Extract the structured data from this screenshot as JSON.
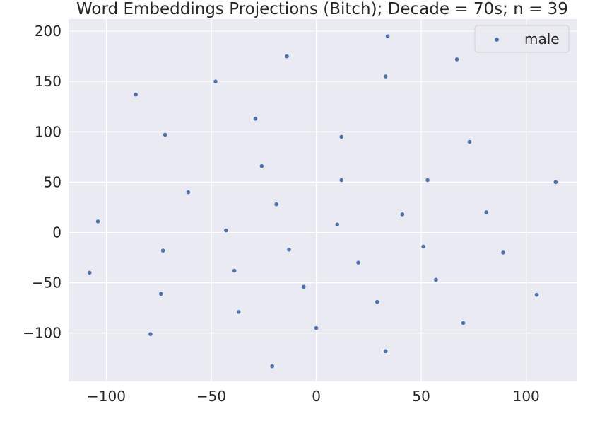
{
  "chart_data": {
    "type": "scatter",
    "title": "Word Embeddings Projections (Bitch); Decade = 70s; n = 39",
    "xlabel": "",
    "ylabel": "",
    "xlim": [
      -118,
      124
    ],
    "ylim": [
      -148,
      212
    ],
    "xticks": [
      -100,
      -50,
      0,
      50,
      100
    ],
    "yticks": [
      -100,
      -50,
      0,
      50,
      100,
      150,
      200
    ],
    "grid": true,
    "legend_position": "top-right",
    "background": "#eaeaf2",
    "series": [
      {
        "name": "male",
        "color": "#4c72b0",
        "points": [
          [
            34,
            195
          ],
          [
            -14,
            175
          ],
          [
            67,
            172
          ],
          [
            33,
            155
          ],
          [
            -48,
            150
          ],
          [
            -86,
            137
          ],
          [
            -29,
            113
          ],
          [
            -72,
            97
          ],
          [
            12,
            95
          ],
          [
            73,
            90
          ],
          [
            -26,
            66
          ],
          [
            12,
            52
          ],
          [
            53,
            52
          ],
          [
            114,
            50
          ],
          [
            -61,
            40
          ],
          [
            -19,
            28
          ],
          [
            41,
            18
          ],
          [
            81,
            20
          ],
          [
            -104,
            11
          ],
          [
            10,
            8
          ],
          [
            -43,
            2
          ],
          [
            -73,
            -18
          ],
          [
            -13,
            -17
          ],
          [
            51,
            -14
          ],
          [
            89,
            -20
          ],
          [
            -108,
            -40
          ],
          [
            -39,
            -38
          ],
          [
            20,
            -30
          ],
          [
            57,
            -47
          ],
          [
            -6,
            -54
          ],
          [
            -74,
            -61
          ],
          [
            105,
            -62
          ],
          [
            29,
            -69
          ],
          [
            -37,
            -79
          ],
          [
            70,
            -90
          ],
          [
            0,
            -95
          ],
          [
            -79,
            -101
          ],
          [
            33,
            -118
          ],
          [
            -21,
            -133
          ]
        ]
      }
    ]
  }
}
